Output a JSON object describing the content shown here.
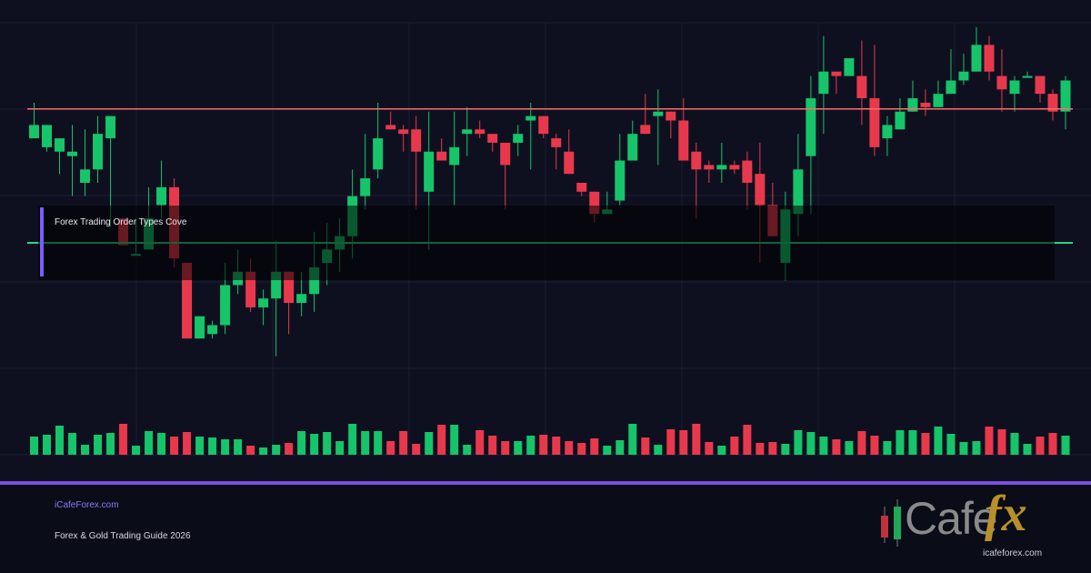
{
  "chart_data": {
    "type": "candlestick",
    "title": "",
    "levels": {
      "resistance": 79.6,
      "support": 49.5
    },
    "colors": {
      "bullish": "#16c46a",
      "bearish": "#e8394c",
      "resistance": "#ff6b6b",
      "support": "#2ed47a",
      "grid": "#1b1e33",
      "background": "#0e1020"
    },
    "ohlc": [
      [
        73,
        76,
        81,
        73
      ],
      [
        71,
        76,
        76,
        70
      ],
      [
        70,
        73,
        73,
        65
      ],
      [
        69,
        70,
        76,
        60
      ],
      [
        63,
        66,
        75,
        60
      ],
      [
        66,
        74,
        78,
        63
      ],
      [
        73,
        78,
        78,
        53
      ],
      [
        55,
        49,
        55,
        49
      ],
      [
        47,
        47,
        55,
        48
      ],
      [
        48,
        55,
        62,
        48
      ],
      [
        58,
        62,
        68,
        55
      ],
      [
        62,
        46,
        64,
        44
      ],
      [
        45,
        28,
        45,
        28
      ],
      [
        28,
        33,
        28,
        28
      ],
      [
        29,
        31,
        32,
        28
      ],
      [
        31,
        40,
        45,
        29
      ],
      [
        40,
        43,
        48,
        38
      ],
      [
        43,
        35,
        46,
        34
      ],
      [
        35,
        37,
        39,
        31
      ],
      [
        37,
        43,
        50,
        24
      ],
      [
        43,
        36,
        43,
        29
      ],
      [
        36,
        38,
        43,
        33
      ],
      [
        38,
        44,
        52,
        34
      ],
      [
        45,
        48,
        54,
        40
      ],
      [
        48,
        51,
        55,
        43
      ],
      [
        51,
        60,
        66,
        46
      ],
      [
        60,
        64,
        74,
        57
      ],
      [
        66,
        73,
        81,
        64
      ],
      [
        76,
        75,
        79,
        75
      ],
      [
        75,
        74,
        76,
        70
      ],
      [
        75,
        70,
        78,
        57
      ],
      [
        61,
        70,
        79,
        48
      ],
      [
        70,
        68,
        73,
        68
      ],
      [
        67,
        71,
        79,
        58
      ],
      [
        74,
        75,
        80,
        69
      ],
      [
        75,
        74,
        77,
        73
      ],
      [
        74,
        72,
        74,
        70
      ],
      [
        72,
        67,
        72,
        57
      ],
      [
        72,
        74,
        76,
        69
      ],
      [
        77,
        78,
        81,
        66
      ],
      [
        78,
        74,
        78,
        73
      ],
      [
        73,
        71,
        74,
        66
      ],
      [
        70,
        65,
        75,
        65
      ],
      [
        63,
        61,
        63,
        60
      ],
      [
        61,
        56,
        61,
        54
      ],
      [
        56,
        57,
        61,
        56
      ],
      [
        59,
        68,
        74,
        58
      ],
      [
        68,
        74,
        77,
        71
      ],
      [
        76,
        74,
        83,
        74
      ],
      [
        78,
        79,
        84,
        67
      ],
      [
        79,
        77,
        79,
        73
      ],
      [
        77,
        68,
        82,
        68
      ],
      [
        70,
        66,
        72,
        55
      ],
      [
        67,
        66,
        68,
        63
      ],
      [
        66,
        67,
        72,
        63
      ],
      [
        67,
        66,
        68,
        65
      ],
      [
        68,
        63,
        70,
        57
      ],
      [
        65,
        58,
        72,
        45
      ],
      [
        58,
        51,
        63,
        51
      ],
      [
        45,
        57,
        61,
        41
      ],
      [
        56,
        66,
        74,
        51
      ],
      [
        69,
        82,
        87,
        56
      ],
      [
        83,
        88,
        96,
        74
      ],
      [
        88,
        87,
        88,
        83
      ],
      [
        87,
        91,
        90,
        92
      ],
      [
        87,
        82,
        95,
        76
      ],
      [
        82,
        71,
        94,
        69
      ],
      [
        73,
        76,
        78,
        69
      ],
      [
        75,
        79,
        82,
        76
      ],
      [
        79,
        82,
        86,
        80
      ],
      [
        81,
        80,
        84,
        78
      ],
      [
        80,
        83,
        86,
        81
      ],
      [
        83,
        86,
        93,
        84
      ],
      [
        86,
        88,
        92,
        85
      ],
      [
        88,
        94,
        98,
        89
      ],
      [
        94,
        88,
        96,
        86
      ],
      [
        87,
        84,
        93,
        79
      ],
      [
        83,
        86,
        87,
        79
      ],
      [
        87,
        87,
        88,
        87
      ],
      [
        87,
        83,
        87,
        81
      ],
      [
        83,
        79,
        84,
        77
      ],
      [
        79,
        86,
        87,
        75
      ]
    ],
    "volume": [
      20,
      22,
      32,
      24,
      11,
      22,
      24,
      34,
      10,
      26,
      24,
      20,
      25,
      20,
      19,
      17,
      17,
      10,
      8,
      11,
      13,
      26,
      23,
      25,
      15,
      34,
      26,
      26,
      15,
      26,
      12,
      25,
      33,
      33,
      11,
      27,
      21,
      15,
      15,
      21,
      22,
      20,
      15,
      13,
      18,
      10,
      16,
      34,
      19,
      11,
      28,
      27,
      34,
      14,
      10,
      20,
      33,
      13,
      14,
      12,
      27,
      25,
      20,
      17,
      15,
      26,
      21,
      15,
      27,
      27,
      24,
      31,
      23,
      14,
      15,
      31,
      28,
      24,
      12,
      20,
      24,
      21
    ]
  },
  "overlay": {
    "label": "Forex Trading Order Types Cove"
  },
  "footer": {
    "site": "iCafeForex.com",
    "guide": "Forex & Gold Trading Guide 2026",
    "logo_word": "Cafe",
    "logo_fx": "fx",
    "logo_url": "icafeforex.com"
  }
}
